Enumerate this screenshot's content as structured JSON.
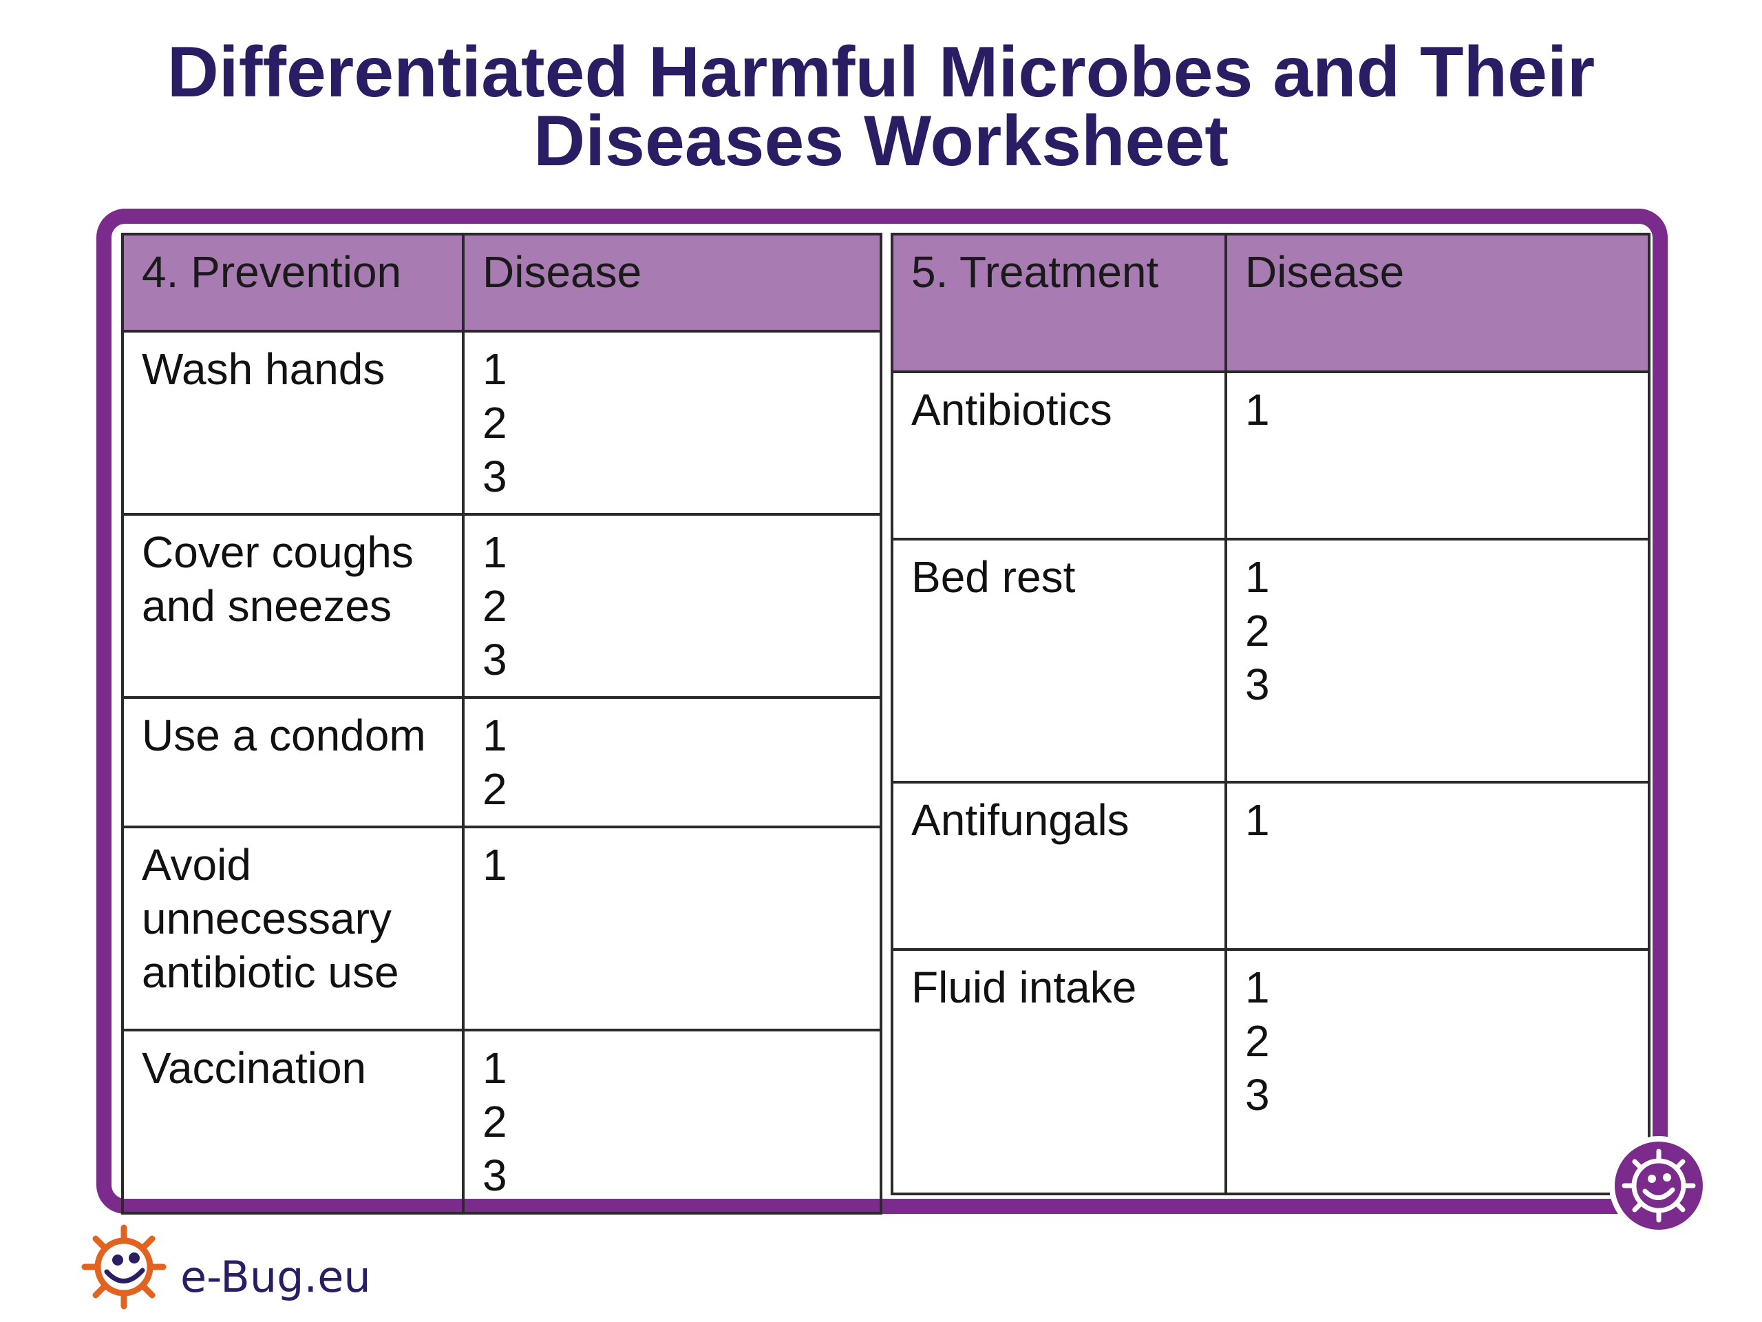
{
  "title": {
    "line1": "Differentiated Harmful Microbes and Their",
    "line2": "Diseases Worksheet"
  },
  "prevention": {
    "header_col1": "4. Prevention",
    "header_col2": "Disease",
    "rows": [
      {
        "lines": [
          "Wash hands"
        ],
        "numbers": [
          "1",
          "2",
          "3"
        ]
      },
      {
        "lines": [
          "Cover coughs",
          "and sneezes"
        ],
        "numbers": [
          "1",
          "2",
          "3"
        ]
      },
      {
        "lines": [
          "Use a condom"
        ],
        "numbers": [
          "1",
          "2"
        ]
      },
      {
        "lines": [
          "Avoid",
          "unnecessary",
          "antibiotic use"
        ],
        "numbers": [
          "1"
        ]
      },
      {
        "lines": [
          "Vaccination"
        ],
        "numbers": [
          "1",
          "2",
          "3"
        ]
      }
    ]
  },
  "treatment": {
    "header_col1": "5. Treatment",
    "header_col2": "Disease",
    "rows": [
      {
        "lines": [
          "Antibiotics"
        ],
        "numbers": [
          "1"
        ]
      },
      {
        "lines": [
          "Bed rest"
        ],
        "numbers": [
          "1",
          "2",
          "3"
        ]
      },
      {
        "lines": [
          "Antifungals"
        ],
        "numbers": [
          "1"
        ]
      },
      {
        "lines": [
          "Fluid intake"
        ],
        "numbers": [
          "1",
          "2",
          "3"
        ]
      }
    ]
  },
  "logo": {
    "text": "e-Bug.eu",
    "icon": "ebug-mascot-icon"
  },
  "badge": {
    "icon": "ebug-mascot-icon"
  },
  "colors": {
    "frame": "#7a2b8c",
    "header_fill": "#a87bb3",
    "title": "#2b1d64",
    "logo_orange": "#e2621f"
  }
}
